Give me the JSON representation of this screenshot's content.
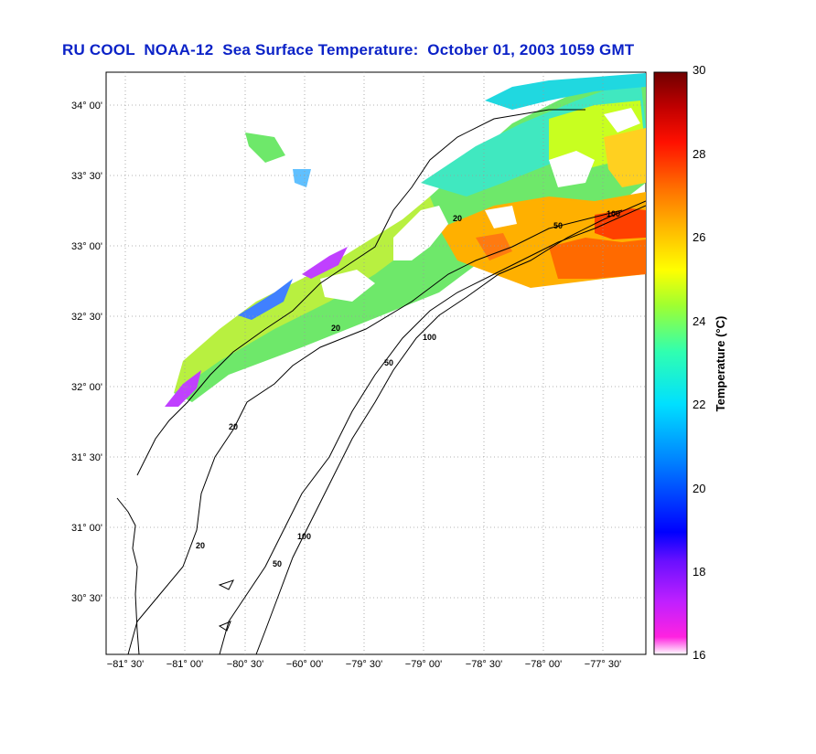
{
  "title": "RU COOL  NOAA-12  Sea Surface Temperature:  October 01, 2003 1059 GMT",
  "map": {
    "lat_ticks": [
      "34° 00'",
      "33° 30'",
      "33° 00'",
      "32° 30'",
      "32° 00'",
      "31° 30'",
      "31° 00'",
      "30° 30'"
    ],
    "lon_ticks": [
      "−81° 30'",
      "−81° 00'",
      "−80° 30'",
      "−60° 00'",
      "−79° 30'",
      "−79° 00'",
      "−78° 30'",
      "−78° 00'",
      "−77° 30'"
    ],
    "contours": [
      {
        "label": "20"
      },
      {
        "label": "50"
      },
      {
        "label": "100"
      }
    ],
    "grid": true,
    "land_color": "#ffffff"
  },
  "colorbar": {
    "label": "Temperature (°C)",
    "ticks": [
      "30",
      "28",
      "26",
      "24",
      "22",
      "20",
      "18",
      "16"
    ],
    "range": [
      16,
      30
    ]
  }
}
